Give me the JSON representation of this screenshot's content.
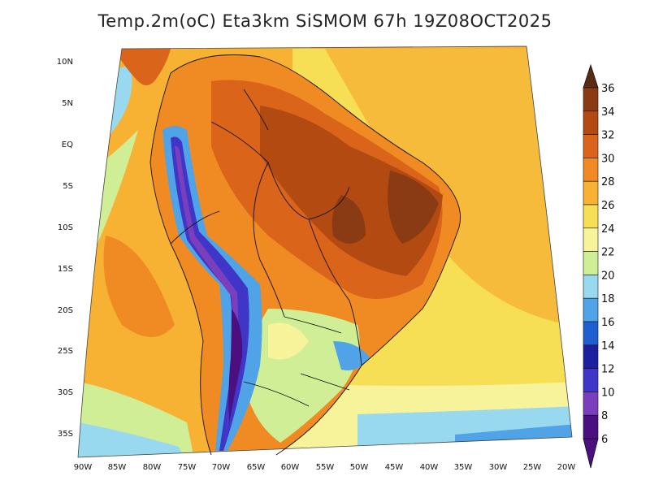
{
  "title": "Temp.2m(oC) Eta3km SiSMOM 67h 19Z08OCT2025",
  "lat_labels": [
    "10N",
    "5N",
    "EQ",
    "5S",
    "10S",
    "15S",
    "20S",
    "25S",
    "30S",
    "35S"
  ],
  "lon_labels": [
    "90W",
    "85W",
    "80W",
    "75W",
    "70W",
    "65W",
    "60W",
    "55W",
    "50W",
    "45W",
    "40W",
    "35W",
    "30W",
    "25W",
    "20W"
  ],
  "colorbar": {
    "labels": [
      "36",
      "34",
      "32",
      "30",
      "28",
      "26",
      "24",
      "22",
      "20",
      "18",
      "16",
      "14",
      "12",
      "10",
      "8",
      "6"
    ],
    "colors": [
      "#5a2a12",
      "#8a3b14",
      "#b34a12",
      "#d9641a",
      "#f08b24",
      "#f7b234",
      "#f6df55",
      "#f6f39a",
      "#cfee95",
      "#99d9ef",
      "#4fa3e6",
      "#1f5fcf",
      "#1c1f9e",
      "#3f36c8",
      "#7b3fbe",
      "#4b0f80"
    ]
  }
}
